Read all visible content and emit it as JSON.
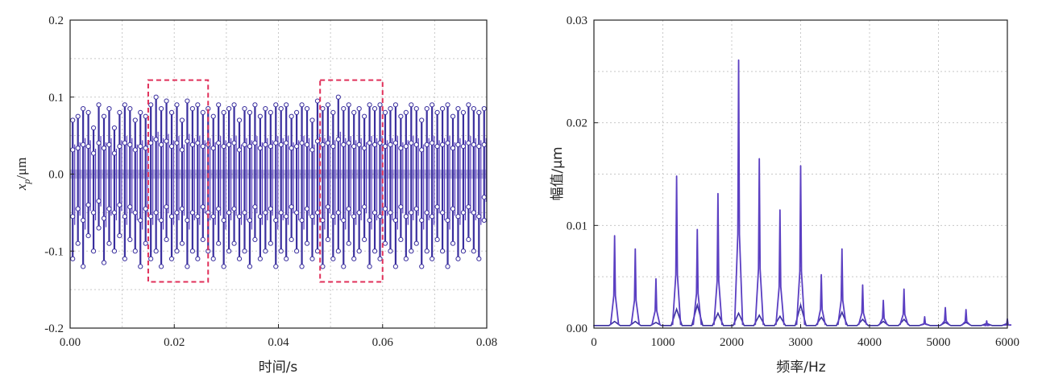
{
  "colors": {
    "series": "#3a2f9e",
    "series_alt": "#5b3fc2",
    "marker": "#ffffff",
    "highlight_box": "#e0305a",
    "grid": "#c8c8c8",
    "axis": "#222222"
  },
  "chart_data": [
    {
      "type": "line",
      "xlabel": "时间/s",
      "ylabel_var": "x",
      "ylabel_sub": "p",
      "ylabel_unit": "/μm",
      "xlim": [
        0,
        0.08
      ],
      "ylim": [
        -0.2,
        0.2
      ],
      "xticks": [
        "0.00",
        "0.02",
        "0.04",
        "0.06",
        "0.08"
      ],
      "xtick_values": [
        0,
        0.02,
        0.04,
        0.06,
        0.08
      ],
      "yticks": [
        "-0.2",
        "-0.1",
        "0.0",
        "0.1",
        "0.2"
      ],
      "ytick_values": [
        -0.2,
        -0.1,
        0,
        0.1,
        0.2
      ],
      "grid": true,
      "series": [
        {
          "pulse_times": [
            0.0005,
            0.0015,
            0.0025,
            0.0035,
            0.0045,
            0.0055,
            0.0065,
            0.0075,
            0.0085,
            0.0095,
            0.0105,
            0.0115,
            0.0125,
            0.0135,
            0.0145,
            0.0155,
            0.0165,
            0.0175,
            0.0185,
            0.0195,
            0.0205,
            0.0215,
            0.0225,
            0.0235,
            0.0245,
            0.0255,
            0.0265,
            0.0275,
            0.0285,
            0.0295,
            0.0305,
            0.0315,
            0.0325,
            0.0335,
            0.0345,
            0.0355,
            0.0365,
            0.0375,
            0.0385,
            0.0395,
            0.0405,
            0.0415,
            0.0425,
            0.0435,
            0.0445,
            0.0455,
            0.0465,
            0.0475,
            0.0485,
            0.0495,
            0.0505,
            0.0515,
            0.0525,
            0.0535,
            0.0545,
            0.0555,
            0.0565,
            0.0575,
            0.0585,
            0.0595,
            0.0605,
            0.0615,
            0.0625,
            0.0635,
            0.0645,
            0.0655,
            0.0665,
            0.0675,
            0.0685,
            0.0695,
            0.0705,
            0.0715,
            0.0725,
            0.0735,
            0.0745,
            0.0755,
            0.0765,
            0.0775,
            0.0785,
            0.0795
          ],
          "peak_max": [
            0.07,
            0.075,
            0.085,
            0.08,
            0.06,
            0.09,
            0.075,
            0.085,
            0.06,
            0.08,
            0.09,
            0.085,
            0.07,
            0.08,
            0.075,
            0.09,
            0.1,
            0.085,
            0.095,
            0.08,
            0.09,
            0.07,
            0.095,
            0.085,
            0.09,
            0.08,
            0.085,
            0.075,
            0.09,
            0.08,
            0.085,
            0.09,
            0.07,
            0.085,
            0.08,
            0.09,
            0.075,
            0.085,
            0.08,
            0.09,
            0.085,
            0.09,
            0.075,
            0.08,
            0.09,
            0.085,
            0.07,
            0.095,
            0.085,
            0.09,
            0.08,
            0.1,
            0.085,
            0.09,
            0.08,
            0.085,
            0.075,
            0.09,
            0.085,
            0.09,
            0.08,
            0.085,
            0.09,
            0.075,
            0.08,
            0.09,
            0.085,
            0.07,
            0.085,
            0.09,
            0.08,
            0.085,
            0.09,
            0.075,
            0.085,
            0.08,
            0.09,
            0.085,
            0.08,
            0.085
          ],
          "peak_min": [
            -0.11,
            -0.09,
            -0.12,
            -0.08,
            -0.1,
            -0.07,
            -0.115,
            -0.09,
            -0.1,
            -0.08,
            -0.11,
            -0.085,
            -0.1,
            -0.12,
            -0.09,
            -0.11,
            -0.1,
            -0.12,
            -0.085,
            -0.11,
            -0.1,
            -0.09,
            -0.12,
            -0.1,
            -0.11,
            -0.085,
            -0.1,
            -0.11,
            -0.09,
            -0.12,
            -0.1,
            -0.09,
            -0.11,
            -0.1,
            -0.12,
            -0.085,
            -0.11,
            -0.1,
            -0.09,
            -0.12,
            -0.1,
            -0.11,
            -0.085,
            -0.1,
            -0.12,
            -0.09,
            -0.11,
            -0.1,
            -0.12,
            -0.085,
            -0.11,
            -0.1,
            -0.12,
            -0.09,
            -0.11,
            -0.1,
            -0.085,
            -0.12,
            -0.1,
            -0.11,
            -0.09,
            -0.1,
            -0.12,
            -0.085,
            -0.11,
            -0.1,
            -0.09,
            -0.12,
            -0.1,
            -0.11,
            -0.085,
            -0.1,
            -0.12,
            -0.09,
            -0.11,
            -0.1,
            -0.085,
            -0.1,
            -0.11,
            -0.06
          ]
        }
      ],
      "highlight_boxes": [
        {
          "x": [
            0.015,
            0.0265
          ],
          "y": [
            -0.14,
            0.122
          ]
        },
        {
          "x": [
            0.048,
            0.06
          ],
          "y": [
            -0.14,
            0.122
          ]
        }
      ]
    },
    {
      "type": "line",
      "xlabel": "频率/Hz",
      "ylabel": "幅值/μm",
      "xlim": [
        0,
        6000
      ],
      "ylim": [
        0,
        0.03
      ],
      "xticks": [
        "0",
        "1000",
        "2000",
        "3000",
        "4000",
        "5000",
        "6000"
      ],
      "xtick_values": [
        0,
        1000,
        2000,
        3000,
        4000,
        5000,
        6000
      ],
      "yticks": [
        "0.00",
        "0.01",
        "0.02",
        "0.03"
      ],
      "ytick_values": [
        0,
        0.01,
        0.02,
        0.03
      ],
      "grid": true,
      "series": [
        {
          "peak_freqs": [
            300,
            600,
            900,
            1200,
            1500,
            1800,
            2100,
            2400,
            2700,
            3000,
            3300,
            3600,
            3900,
            4200,
            4500,
            4800,
            5100,
            5400,
            5700,
            6000
          ],
          "peak_amps": [
            0.009,
            0.0077,
            0.0048,
            0.0148,
            0.0096,
            0.0131,
            0.0261,
            0.0165,
            0.0115,
            0.0158,
            0.0052,
            0.0077,
            0.0042,
            0.0027,
            0.0038,
            0.0011,
            0.002,
            0.0018,
            0.0007,
            0.0009
          ],
          "base_bumps": [
            0.0004,
            0.0004,
            0.0003,
            0.0016,
            0.002,
            0.0012,
            0.0012,
            0.001,
            0.0009,
            0.002,
            0.0008,
            0.0013,
            0.0006,
            0.0004,
            0.0006,
            0.0002,
            0.0003,
            0.0003,
            0.0002,
            0.0002
          ]
        }
      ]
    }
  ]
}
